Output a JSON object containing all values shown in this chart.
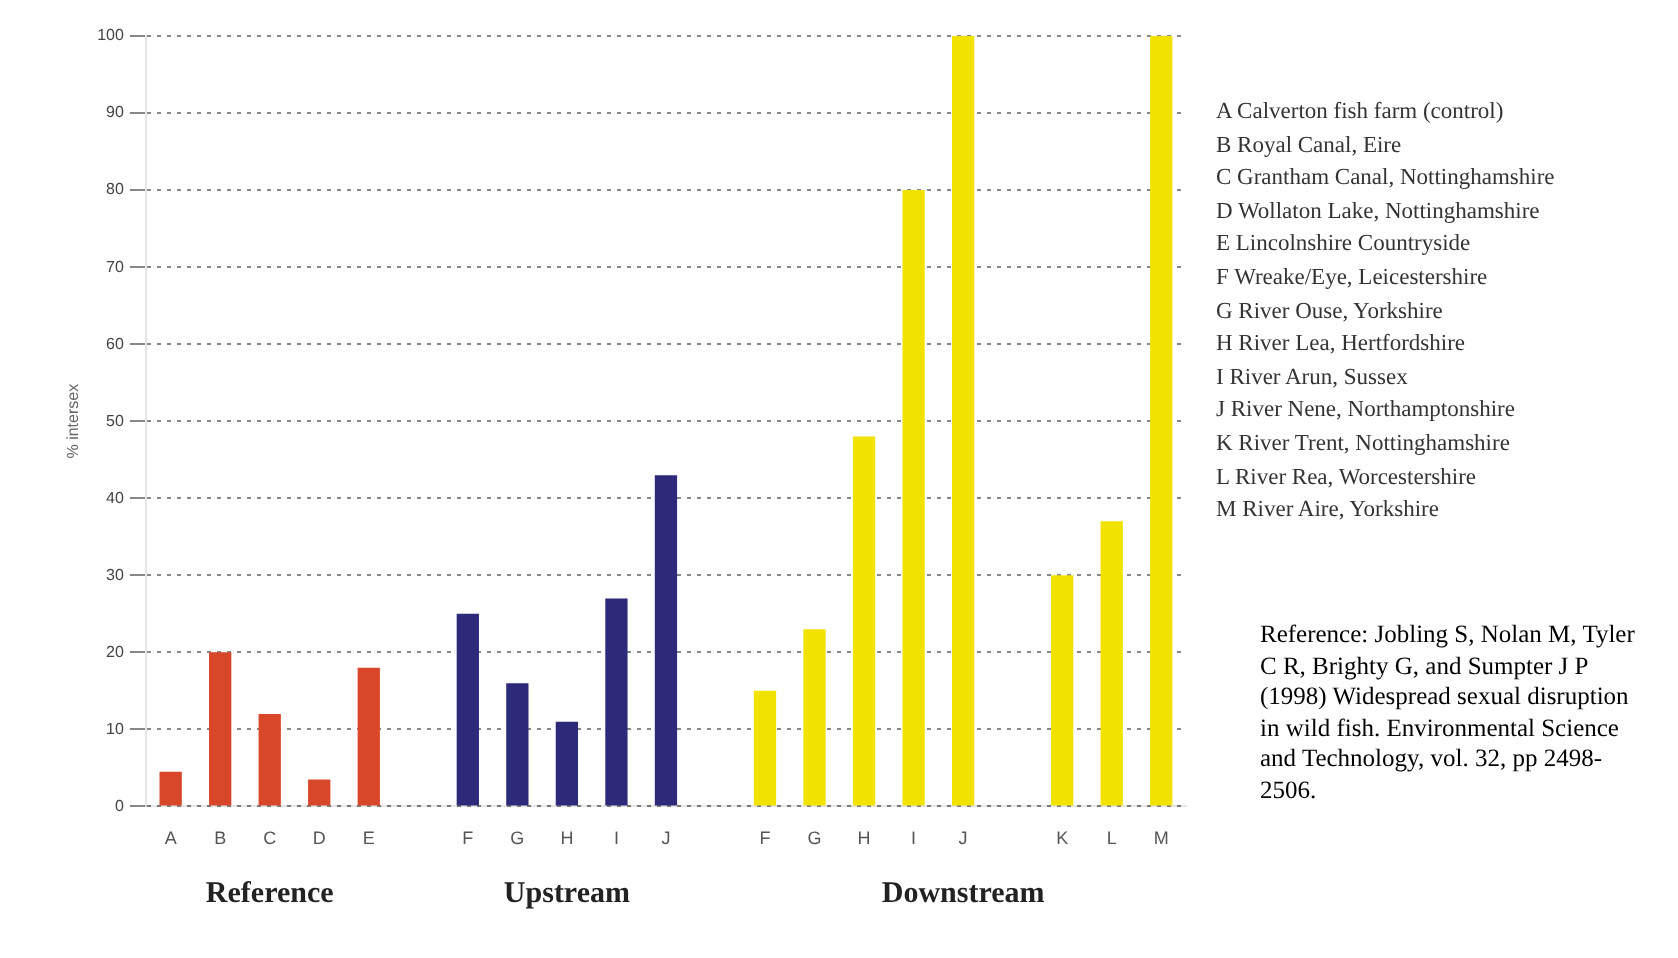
{
  "chart_data": {
    "type": "bar",
    "ylabel": "% intersex",
    "categories": [
      "A",
      "B",
      "C",
      "D",
      "E",
      null,
      "F",
      "G",
      "H",
      "I",
      "J",
      null,
      "F",
      "G",
      "H",
      "I",
      "J",
      null,
      "K",
      "L",
      "M"
    ],
    "values": [
      4.5,
      20,
      12,
      3.5,
      18,
      null,
      25,
      16,
      11,
      27,
      43,
      null,
      15,
      23,
      48,
      80,
      100,
      null,
      30,
      37,
      100
    ],
    "colors": [
      "#d9472b",
      "#d9472b",
      "#d9472b",
      "#d9472b",
      "#d9472b",
      "#ffffff",
      "#2e2a7a",
      "#2e2a7a",
      "#2e2a7a",
      "#2e2a7a",
      "#2e2a7a",
      "#ffffff",
      "#f2e200",
      "#f2e200",
      "#f2e200",
      "#f2e200",
      "#f2e200",
      "#ffffff",
      "#f2e200",
      "#f2e200",
      "#f2e200"
    ],
    "ylim": [
      0,
      100
    ],
    "yticks": [
      0,
      10,
      20,
      30,
      40,
      50,
      60,
      70,
      80,
      90,
      100
    ],
    "grid": "y",
    "legend": false,
    "annotations": [
      "Reference",
      "Upstream",
      "Downstream",
      "A Calverton fish farm (control)",
      "B Royal Canal, Eire",
      "C Grantham Canal, Nottinghamshire",
      "D Wollaton Lake, Nottinghamshire",
      "E Lincolnshire Countryside",
      "F Wreake/Eye, Leicestershire",
      "G River Ouse, Yorkshire",
      "H River Lea, Hertfordshire",
      "I River Arun, Sussex",
      "J River Nene, Northamptonshire",
      "K River Trent, Nottinghamshire",
      "L River Rea, Worcestershire",
      "M River Aire, Yorkshire",
      "Reference: Jobling S, Nolan M, Tyler C R, Brighty G, and Sumpter J P (1998) Widespread sexual disruption in wild fish.  Environmental Science and Technology, vol. 32, pp 2498-2506."
    ]
  }
}
